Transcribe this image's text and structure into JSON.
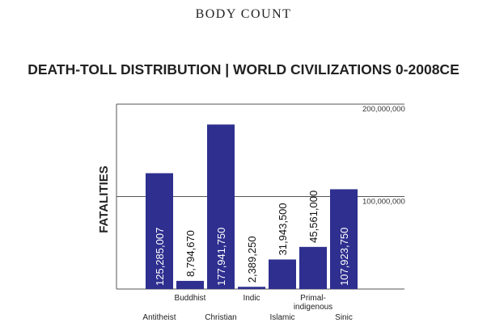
{
  "header": "BODY COUNT",
  "chart_data": {
    "type": "bar",
    "title": "DEATH-TOLL DISTRIBUTION | WORLD CIVILIZATIONS 0-2008CE",
    "ylabel": "FATALITIES",
    "xlabel": "",
    "ylim": [
      0,
      200000000
    ],
    "yticks": [
      {
        "value": 200000000,
        "label": "200,000,000"
      },
      {
        "value": 100000000,
        "label": "100,000,000"
      }
    ],
    "categories": [
      "Antitheist",
      "Buddhist",
      "Christian",
      "Indic",
      "Islamic",
      "Primal-\nindigenous",
      "Sinic"
    ],
    "values": [
      125285007,
      8794670,
      177941750,
      2389250,
      31943500,
      45561000,
      107923750
    ],
    "value_labels": [
      "125,285,007",
      "8,794,670",
      "177,941,750",
      "2,389,250",
      "31,943,500",
      "45,561,000",
      "107,923,750"
    ],
    "bar_color": "#2e2f8f",
    "grid": true
  }
}
